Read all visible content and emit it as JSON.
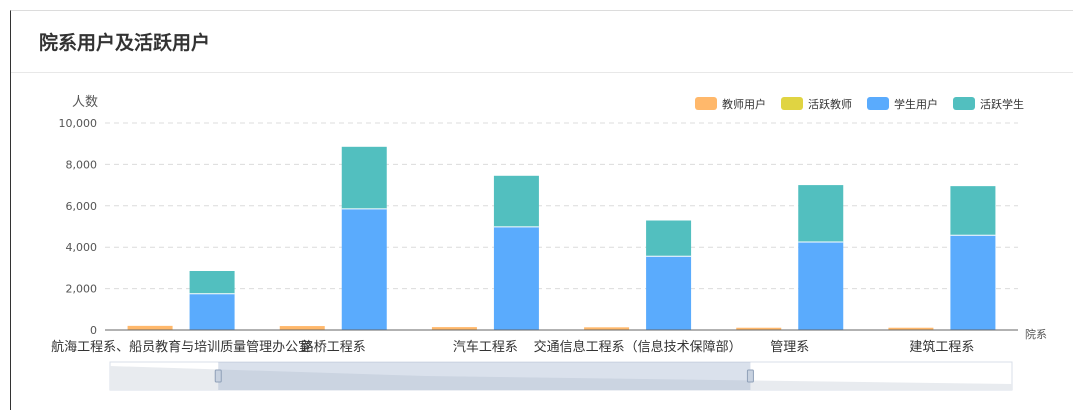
{
  "panel": {
    "title": "院系用户及活跃用户"
  },
  "chart_data": {
    "type": "bar",
    "ylabel": "人数",
    "xlabel": "院系",
    "ylim": [
      0,
      10000
    ],
    "yticks": [
      "0",
      "2,000",
      "4,000",
      "6,000",
      "8,000",
      "10,000"
    ],
    "grid": true,
    "legend_position": "top-right",
    "categories": [
      "航海工程系、船员教育与培训质量管理办公室",
      "路桥工程系",
      "汽车工程系",
      "交通信息工程系（信息技术保障部）",
      "管理系",
      "建筑工程系"
    ],
    "stacks": [
      {
        "stack": "teacher",
        "series": [
          {
            "name": "教师用户",
            "color": "#ffb86b",
            "values": [
              200,
              190,
              140,
              130,
              110,
              110
            ]
          },
          {
            "name": "活跃教师",
            "color": "#e0d442",
            "values": [
              0,
              0,
              0,
              0,
              0,
              0
            ]
          }
        ]
      },
      {
        "stack": "student",
        "series": [
          {
            "name": "学生用户",
            "color": "#5aabfd",
            "values": [
              1750,
              5850,
              4980,
              3560,
              4250,
              4580
            ]
          },
          {
            "name": "活跃学生",
            "color": "#52bfbf",
            "values": [
              1100,
              3000,
              2470,
              1730,
              2750,
              2370
            ]
          }
        ]
      }
    ],
    "legend": [
      {
        "name": "教师用户",
        "color": "#ffb86b"
      },
      {
        "name": "活跃教师",
        "color": "#e0d442"
      },
      {
        "name": "学生用户",
        "color": "#5aabfd"
      },
      {
        "name": "活跃学生",
        "color": "#52bfbf"
      }
    ],
    "data_zoom": {
      "start": 0.12,
      "end": 0.71
    }
  }
}
